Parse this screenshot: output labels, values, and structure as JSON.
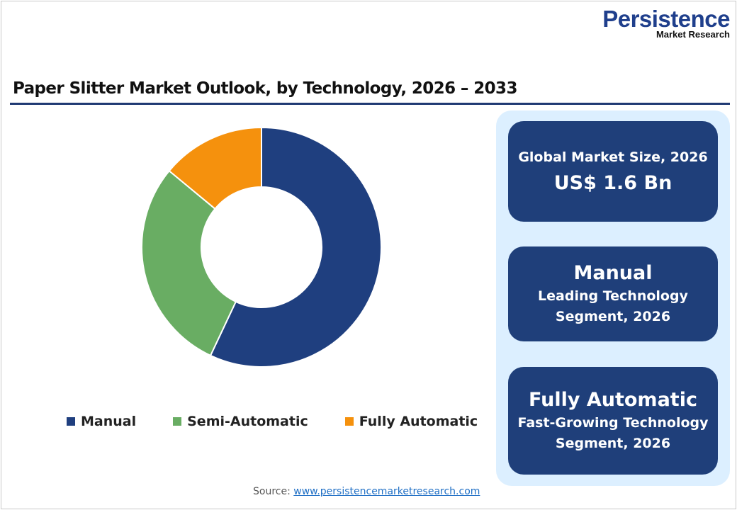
{
  "logo": {
    "name": "Persistence",
    "tagline": "Market Research"
  },
  "title": "Paper Slitter Market Outlook, by Technology, 2026 – 2033",
  "chart_data": {
    "type": "pie",
    "donut": true,
    "title": "Paper Slitter Market Outlook, by Technology, 2026 – 2033",
    "categories": [
      "Manual",
      "Semi-Automatic",
      "Fully Automatic"
    ],
    "values": [
      57,
      29,
      14
    ],
    "unit": "% share (estimated)",
    "colors": [
      "#1f3f7f",
      "#69ad63",
      "#f5910d"
    ],
    "legend_position": "bottom"
  },
  "cards": [
    {
      "line1": "Global Market Size, 2026",
      "line2": "US$ 1.6 Bn"
    },
    {
      "line1": "Manual",
      "line2": "Leading Technology",
      "line3": "Segment, 2026"
    },
    {
      "line1": "Fully Automatic",
      "line2": "Fast-Growing Technology",
      "line3": "Segment, 2026"
    }
  ],
  "source": {
    "label": "Source: ",
    "link": "www.persistencemarketresearch.com"
  }
}
